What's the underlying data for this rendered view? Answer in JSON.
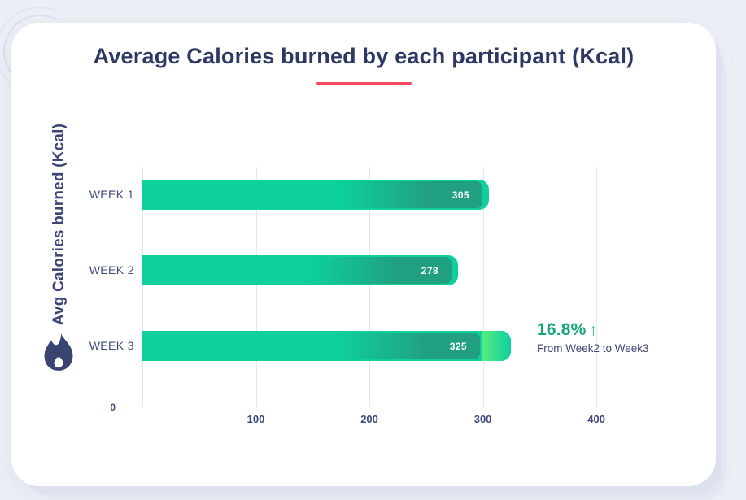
{
  "page": {
    "background_color": "#edeff6"
  },
  "card": {
    "background_color": "#ffffff"
  },
  "title": {
    "text": "Average Calories burned by each participant (Kcal)",
    "color": "#2e3963",
    "underline_color": "#f4485e"
  },
  "y_axis": {
    "label": "Avg Calories burned (Kcal)"
  },
  "icons": {
    "flame": "flame-icon",
    "up_arrow": "↑"
  },
  "chart_data": {
    "type": "bar",
    "orientation": "horizontal",
    "title": "Average Calories burned by each participant (Kcal)",
    "ylabel": "Avg Calories burned (Kcal)",
    "xlabel": "",
    "categories": [
      "WEEK 1",
      "WEEK 2",
      "WEEK 3"
    ],
    "values": [
      305,
      278,
      325
    ],
    "xlim": [
      0,
      430
    ],
    "x_ticks": [
      0,
      100,
      200,
      300,
      400
    ],
    "grid": true,
    "legend": false,
    "bar_color": "#0dd09d",
    "bar_label_color": "#ffffff",
    "highlight_tip_color": "#58ed7d",
    "annotation": {
      "percent": "16.8%",
      "arrow": "↑",
      "caption": "From Week2 to Week3",
      "color": "#16a47b",
      "applies_to": "WEEK 3"
    }
  }
}
